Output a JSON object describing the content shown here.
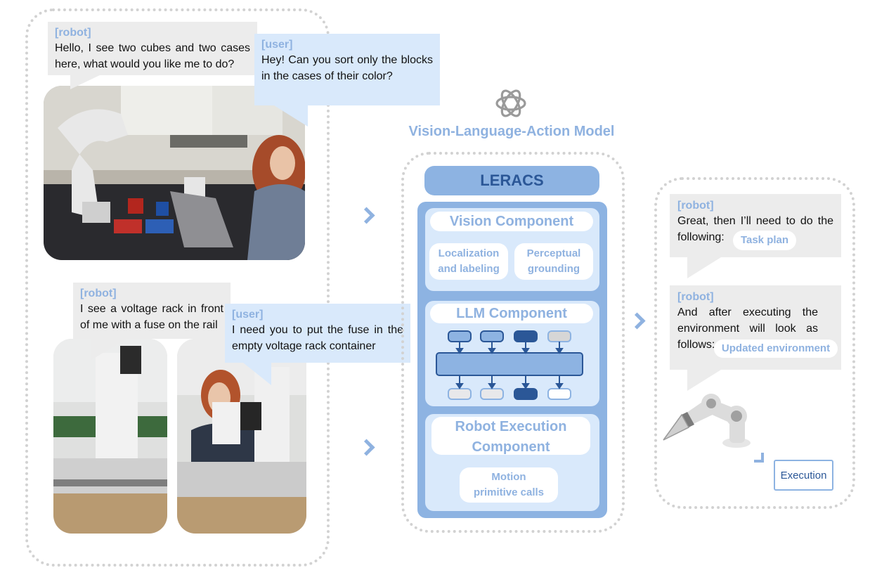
{
  "left_panel": {
    "bubble1": {
      "speaker": "[robot]",
      "text": "Hello, I see two cubes and two cases here, what would you like me to do?"
    },
    "bubble2": {
      "speaker": "[user]",
      "text": "Hey! Can you sort only the blocks in the cases of their color?"
    },
    "bubble3": {
      "speaker": "[robot]",
      "text": "I see a voltage rack in front of me with a fuse on the rail"
    },
    "bubble4": {
      "speaker": "[user]",
      "text": "I need you to put the fuse in the empty voltage rack container"
    }
  },
  "center": {
    "model_title": "Vision-Language-Action Model",
    "leracs": "LERACS",
    "vision": {
      "title": "Vision Component",
      "item1": "Localization and labeling",
      "item2": "Perceptual grounding"
    },
    "llm": {
      "title": "LLM Component"
    },
    "robot": {
      "title": "Robot Execution Component",
      "item1": "Motion primitive calls"
    }
  },
  "right_panel": {
    "bubble1": {
      "speaker": "[robot]",
      "text": "Great, then I’ll need to do the following:",
      "pill": "Task plan"
    },
    "bubble2": {
      "speaker": "[robot]",
      "text": "And after executing the environment will look as follows:",
      "pill": "Updated environment"
    },
    "execution": "Execution"
  },
  "colors": {
    "accent_light": "#8fb2e0",
    "panel_blue": "#8db3e2",
    "panel_light": "#d9e9fb",
    "dark_blue": "#2b5797",
    "bubble_grey": "#ececec"
  }
}
